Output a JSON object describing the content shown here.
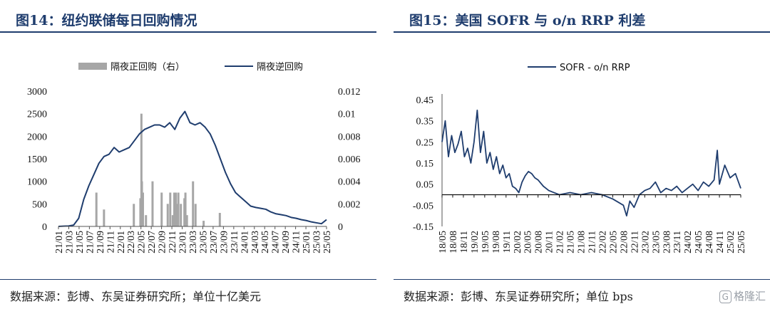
{
  "left": {
    "title": "图14：纽约联储每日回购情况",
    "source": "数据来源：彭博、东吴证券研究所；单位十亿美元"
  },
  "right": {
    "title": "图15：美国 SOFR 与 o/n RRP 利差",
    "source": "数据来源：彭博、东吴证券研究所；单位 bps"
  },
  "watermark": {
    "box": "G",
    "text": "格隆汇"
  },
  "colors": {
    "line": "#1f3d6e",
    "bar": "#a6a6a6",
    "title": "#1f3d6e"
  },
  "chart_data": [
    {
      "type": "line",
      "title": "",
      "legend_position": "top",
      "x_ticks": [
        "21/01",
        "21/03",
        "21/05",
        "21/07",
        "21/09",
        "21/11",
        "22/01",
        "22/03",
        "22/05",
        "22/07",
        "22/09",
        "22/11",
        "23/01",
        "23/03",
        "23/05",
        "23/07",
        "23/09",
        "23/11",
        "24/01",
        "24/03",
        "24/05",
        "24/07",
        "24/09",
        "24/11",
        "25/01",
        "25/03",
        "25/05"
      ],
      "y_left": {
        "ticks": [
          "0",
          "500",
          "1000",
          "1500",
          "2000",
          "2500",
          "3000"
        ],
        "range": [
          0,
          3000
        ]
      },
      "y_right": {
        "ticks": [
          "0",
          "0.002",
          "0.004",
          "0.006",
          "0.008",
          "0.01",
          "0.012"
        ],
        "range": [
          0,
          0.012
        ]
      },
      "series": [
        {
          "name": "隔夜逆回购",
          "type": "line",
          "axis": "left",
          "x_index": [
            0,
            1,
            2,
            3,
            4,
            5,
            6,
            7,
            8,
            9,
            10,
            11,
            12,
            13,
            14,
            15,
            16,
            17,
            18,
            19,
            20,
            21,
            22,
            23,
            24,
            25,
            26,
            27,
            28,
            29,
            30,
            31,
            32,
            33,
            34,
            35,
            36,
            37,
            38,
            39,
            40,
            41,
            42,
            43,
            44,
            45,
            46,
            47,
            48,
            49,
            50,
            51,
            52,
            53
          ],
          "values": [
            0,
            5,
            10,
            30,
            180,
            600,
            900,
            1150,
            1400,
            1550,
            1600,
            1750,
            1650,
            1700,
            1750,
            1900,
            2050,
            2150,
            2200,
            2250,
            2250,
            2200,
            2300,
            2150,
            2400,
            2550,
            2300,
            2250,
            2300,
            2200,
            2050,
            1800,
            1500,
            1200,
            950,
            750,
            650,
            550,
            450,
            420,
            400,
            380,
            320,
            280,
            260,
            240,
            200,
            180,
            150,
            130,
            100,
            80,
            60,
            150
          ]
        },
        {
          "name": "隔夜正回购（右）",
          "type": "bar",
          "axis": "right",
          "x_index": [
            7.5,
            9.0,
            14.9,
            16.2,
            16.4,
            16.5,
            16.7,
            17.3,
            18.6,
            20.4,
            21.6,
            22.1,
            22.6,
            22.9,
            23.2,
            23.4,
            23.7,
            24.2,
            24.9,
            25.1,
            25.4,
            26.6,
            27.1,
            28.7,
            31.9
          ],
          "values": [
            0.003,
            0.0015,
            0.002,
            0.0025,
            0.01,
            0.004,
            0.003,
            0.001,
            0.004,
            0.003,
            0.002,
            0.003,
            0.001,
            0.003,
            0.003,
            0.002,
            0.003,
            0.002,
            0.0025,
            0.003,
            0.001,
            0.004,
            0.002,
            0.0005,
            0.0012
          ]
        }
      ]
    },
    {
      "type": "line",
      "title": "",
      "legend_position": "top",
      "x_ticks": [
        "18/05",
        "18/08",
        "18/11",
        "19/02",
        "19/05",
        "19/08",
        "19/11",
        "20/02",
        "20/05",
        "20/08",
        "20/11",
        "21/02",
        "21/05",
        "21/08",
        "21/11",
        "22/02",
        "22/05",
        "22/08",
        "22/11",
        "23/02",
        "23/05",
        "23/08",
        "23/11",
        "24/02",
        "24/05",
        "24/08",
        "24/11",
        "25/02",
        "25/05"
      ],
      "y": {
        "ticks": [
          "-0.15",
          "-0.05",
          "0.05",
          "0.15",
          "0.25",
          "0.35",
          "0.45"
        ],
        "range": [
          -0.15,
          0.45
        ]
      },
      "series": [
        {
          "name": "SOFR - o/n RRP",
          "x_index": [
            0,
            0.3,
            0.6,
            0.9,
            1.2,
            1.5,
            1.8,
            2.1,
            2.4,
            2.7,
            3,
            3.3,
            3.6,
            3.9,
            4.2,
            4.5,
            4.8,
            5.1,
            5.4,
            5.7,
            6,
            6.3,
            6.6,
            6.9,
            7.2,
            7.5,
            7.8,
            8.1,
            8.4,
            8.7,
            9,
            9.5,
            10,
            10.5,
            11,
            12,
            13,
            14,
            15,
            16,
            17,
            17.3,
            17.6,
            18,
            18.5,
            19,
            19.5,
            20,
            20.5,
            21,
            21.5,
            22,
            22.5,
            23,
            23.5,
            24,
            24.5,
            25,
            25.5,
            25.8,
            26,
            26.5,
            27,
            27.5,
            28
          ],
          "values": [
            0.25,
            0.35,
            0.18,
            0.28,
            0.2,
            0.24,
            0.3,
            0.18,
            0.22,
            0.15,
            0.25,
            0.4,
            0.2,
            0.3,
            0.15,
            0.2,
            0.12,
            0.18,
            0.1,
            0.14,
            0.08,
            0.1,
            0.04,
            0.03,
            0.01,
            0.06,
            0.09,
            0.11,
            0.1,
            0.08,
            0.07,
            0.04,
            0.02,
            0.01,
            0.0,
            0.01,
            0.0,
            0.01,
            0.0,
            -0.02,
            -0.05,
            -0.1,
            -0.03,
            -0.06,
            0.0,
            0.02,
            0.03,
            0.06,
            0.01,
            0.03,
            0.02,
            0.04,
            0.01,
            0.03,
            0.05,
            0.02,
            0.06,
            0.04,
            0.07,
            0.21,
            0.05,
            0.14,
            0.08,
            0.1,
            0.03
          ]
        }
      ]
    }
  ]
}
